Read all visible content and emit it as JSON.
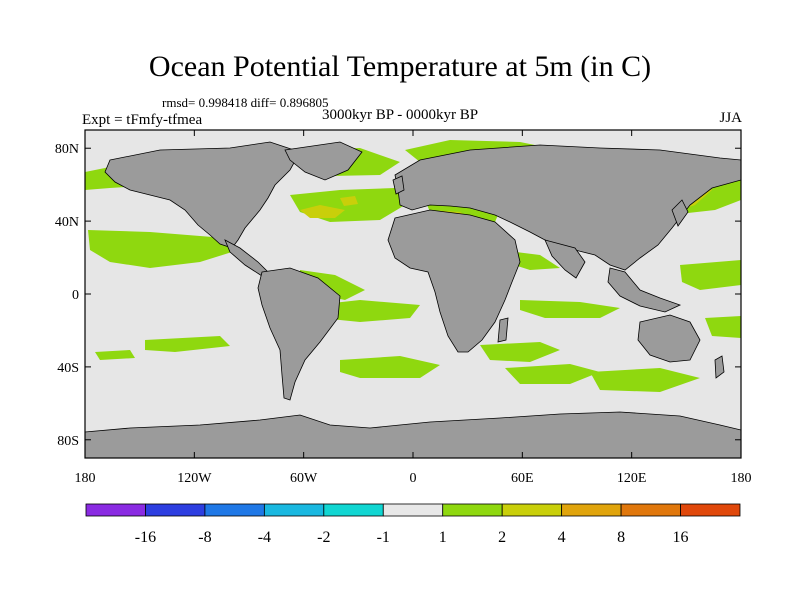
{
  "title": "Ocean Potential Temperature at 5m (in C)",
  "stats": "rmsd= 0.998418 diff= 0.896805",
  "experiment": "Expt = tFmfy-tfmea",
  "period": "3000kyr BP - 0000kyr BP",
  "season": "JJA",
  "map": {
    "land_color": "#9b9b9b",
    "ocean_color": "#e6e6e6",
    "lon_ticks": [
      "180",
      "120W",
      "60W",
      "0",
      "60E",
      "120E",
      "180"
    ],
    "lat_ticks": [
      "80N",
      "40N",
      "0",
      "40S",
      "80S"
    ]
  },
  "colorbar": {
    "colors": [
      "#8a2be2",
      "#2d3ee0",
      "#1f78e6",
      "#19b8e0",
      "#11d6d2",
      "#e8e8e8",
      "#8fd80f",
      "#c9cf0a",
      "#e0a40c",
      "#e0770c",
      "#e0480b"
    ],
    "labels": [
      "-16",
      "-8",
      "-4",
      "-2",
      "-1",
      "1",
      "2",
      "4",
      "8",
      "16"
    ]
  }
}
